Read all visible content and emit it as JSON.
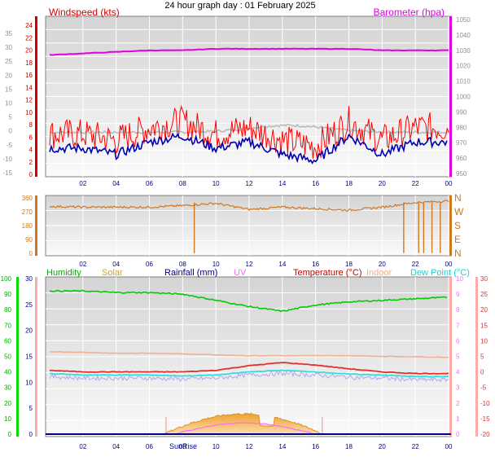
{
  "title": "24 hour graph day : 01 February 2025",
  "colors": {
    "wind": "#d00000",
    "gust": "#ff0000",
    "avg": "#0000b0",
    "baro": "#e000e0",
    "temp_ghost": "#b0b0b0",
    "dir": "#d07820",
    "humidity": "#00cc00",
    "solar": "#e0a030",
    "rain": "#000080",
    "uv": "#ff66ff",
    "temp": "#e03030",
    "indoor": "#f0b090",
    "dew": "#33dddd",
    "feel": "#b0a8f0"
  },
  "panel1": {
    "left_label": "Windspeed (kts)",
    "right_label": "Barometer (hpa)",
    "left_ticks": [
      "24",
      "22",
      "20",
      "18",
      "16",
      "14",
      "12",
      "10",
      "8",
      "6",
      "4",
      "2",
      "0"
    ],
    "far_left_ticks": [
      "35",
      "30",
      "25",
      "20",
      "15",
      "10",
      "5",
      "0",
      "-5",
      "-10",
      "-15"
    ],
    "right_ticks": [
      "1050",
      "1040",
      "1030",
      "1020",
      "1010",
      "1000",
      "990",
      "980",
      "970",
      "960",
      "950"
    ]
  },
  "panel2": {
    "left_ticks": [
      "360",
      "270",
      "180",
      "90",
      "0"
    ],
    "right_ticks": [
      "N",
      "W",
      "S",
      "E",
      "N"
    ]
  },
  "panel3": {
    "legend": {
      "humidity": "Humidity",
      "solar": "Solar",
      "rainfall": "Rainfall (mm)",
      "uv": "UV",
      "temperature": "Temperature (°C)",
      "indoor": "Indoor",
      "dewpoint": "Dew Point (°C)"
    },
    "humidity_ticks": [
      "100",
      "90",
      "80",
      "70",
      "60",
      "50",
      "40",
      "30",
      "20",
      "10",
      "0"
    ],
    "rain_ticks": [
      "30",
      "25",
      "20",
      "15",
      "10",
      "5",
      "0"
    ],
    "uv_ticks": [
      "10",
      "9",
      "8",
      "7",
      "6",
      "5",
      "4",
      "3",
      "2",
      "1",
      "0"
    ],
    "temp_ticks": [
      "30",
      "25",
      "20",
      "15",
      "10",
      "5",
      "0",
      "-5",
      "-10",
      "-15",
      "-20"
    ],
    "sun_label": "SunRise"
  },
  "x_ticks": [
    "02",
    "04",
    "06",
    "08",
    "10",
    "12",
    "14",
    "16",
    "18",
    "20",
    "22",
    "00"
  ],
  "chart_data": [
    {
      "type": "line",
      "title": "Windspeed (kts)",
      "x": [
        0,
        2,
        4,
        6,
        8,
        10,
        12,
        14,
        16,
        18,
        20,
        22,
        24
      ],
      "series": [
        {
          "name": "Windspeed (kts)",
          "values": [
            5,
            5,
            4,
            6,
            7,
            5,
            6,
            4,
            3,
            7,
            4,
            6,
            6
          ]
        },
        {
          "name": "Barometer (hpa)",
          "values": [
            1027,
            1028,
            1029,
            1030,
            1030,
            1031,
            1031,
            1031,
            1031,
            1031,
            1030,
            1030,
            1030
          ]
        }
      ],
      "ylim": [
        0,
        25
      ],
      "y2lim": [
        950,
        1050
      ]
    },
    {
      "type": "line",
      "x": [
        0,
        2,
        4,
        6,
        8,
        10,
        12,
        14,
        16,
        18,
        20,
        22,
        24
      ],
      "series": [
        {
          "values": [
            305,
            300,
            300,
            300,
            310,
            325,
            285,
            300,
            290,
            280,
            300,
            330,
            340
          ]
        }
      ],
      "ylim": [
        0,
        360
      ]
    },
    {
      "type": "line",
      "title": "Humidity / Solar / Rainfall / UV / Temperature / Indoor / Dew Point",
      "x": [
        0,
        2,
        4,
        6,
        8,
        10,
        12,
        14,
        16,
        18,
        20,
        22,
        24
      ],
      "series": [
        {
          "name": "Humidity",
          "values": [
            92,
            92,
            91,
            91,
            90,
            86,
            82,
            79,
            83,
            85,
            86,
            87,
            88
          ]
        },
        {
          "name": "Temperature (°C)",
          "values": [
            0.5,
            0,
            0,
            0,
            0,
            0.5,
            2,
            3,
            2.2,
            1,
            0,
            -0.5,
            -0.5
          ]
        },
        {
          "name": "Indoor",
          "values": [
            6.5,
            6.3,
            6,
            6,
            5.8,
            5.5,
            5.2,
            5.2,
            5.2,
            5.2,
            5,
            4.9,
            4.7
          ]
        },
        {
          "name": "Dew Point (°C)",
          "values": [
            -0.5,
            -1,
            -1,
            -1,
            -1.3,
            -1,
            0,
            0.5,
            0,
            -0.7,
            -1,
            -1.5,
            -1.5
          ]
        }
      ],
      "ylim": [
        -20,
        30
      ]
    }
  ]
}
